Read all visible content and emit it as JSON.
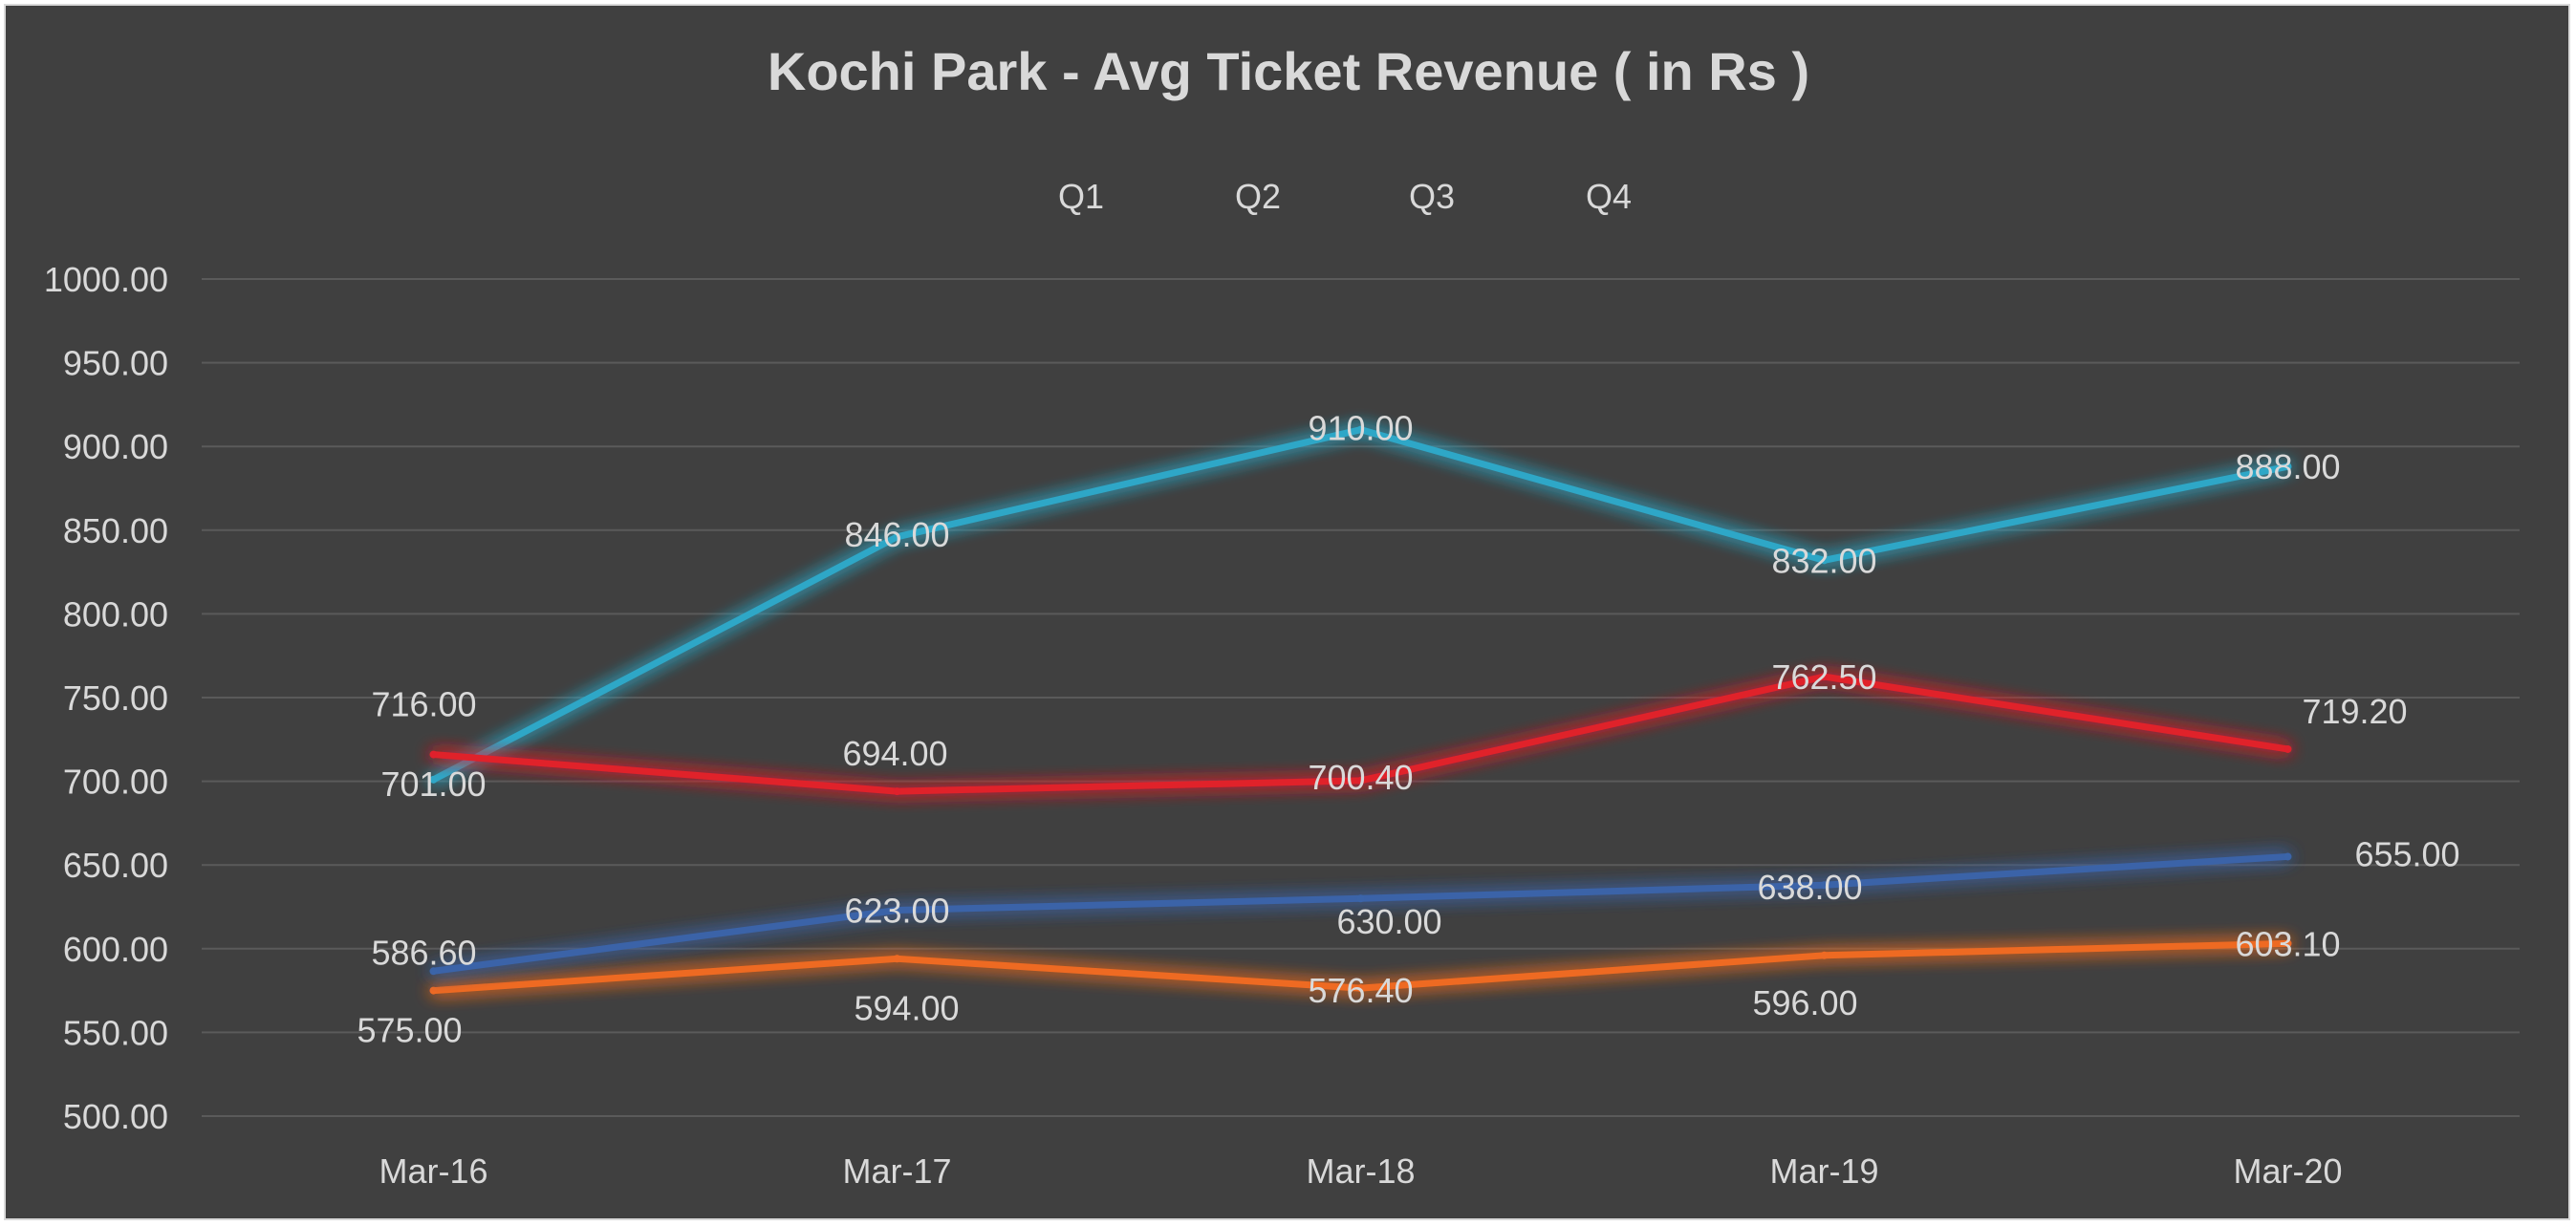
{
  "chart_data": {
    "type": "line",
    "title": "Kochi Park - Avg Ticket Revenue ( in Rs )",
    "xlabel": "",
    "ylabel": "",
    "categories": [
      "Mar-16",
      "Mar-17",
      "Mar-18",
      "Mar-19",
      "Mar-20"
    ],
    "y_ticks": [
      "1000.00",
      "950.00",
      "900.00",
      "850.00",
      "800.00",
      "750.00",
      "700.00",
      "650.00",
      "600.00",
      "550.00",
      "500.00"
    ],
    "ylim": [
      500,
      1000
    ],
    "grid": true,
    "legend_position": "top",
    "series": [
      {
        "name": "Q1",
        "color": "#2fa7c7",
        "values": [
          701.0,
          846.0,
          910.0,
          832.0,
          888.0
        ],
        "labels": [
          "701.00",
          "846.00",
          "910.00",
          "832.00",
          "888.00"
        ]
      },
      {
        "name": "Q2",
        "color": "#e0202c",
        "values": [
          716.0,
          694.0,
          700.4,
          762.5,
          719.2
        ],
        "labels": [
          "716.00",
          "694.00",
          "700.40",
          "762.50",
          "719.20"
        ]
      },
      {
        "name": "Q3",
        "color": "#ee6a24",
        "values": [
          575.0,
          594.0,
          576.4,
          596.0,
          603.1
        ],
        "labels": [
          "575.00",
          "594.00",
          "576.40",
          "596.00",
          "603.10"
        ]
      },
      {
        "name": "Q4",
        "color": "#3b64a8",
        "values": [
          586.6,
          623.0,
          630.0,
          638.0,
          655.0
        ],
        "labels": [
          "586.60",
          "623.00",
          "630.00",
          "638.00",
          "655.00"
        ]
      }
    ]
  }
}
